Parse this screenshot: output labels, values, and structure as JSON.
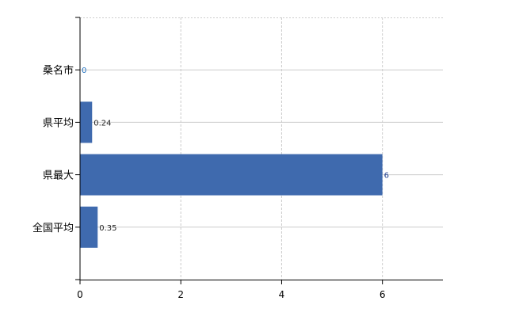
{
  "chart_data": {
    "type": "bar",
    "orientation": "horizontal",
    "categories": [
      "桑名市",
      "県平均",
      "県最大",
      "全国平均"
    ],
    "values": [
      0,
      0.24,
      6,
      0.35
    ],
    "data_labels": [
      "0",
      "0.24",
      "6",
      "0.35"
    ],
    "x_ticks": [
      "0",
      "2",
      "4",
      "6"
    ],
    "xlim": [
      0,
      7.2
    ],
    "grid": true,
    "title": "",
    "xlabel": "",
    "ylabel": "",
    "colors": {
      "bar": "#3f6aae",
      "grid": "#cccccc",
      "axis": "#000000"
    }
  }
}
